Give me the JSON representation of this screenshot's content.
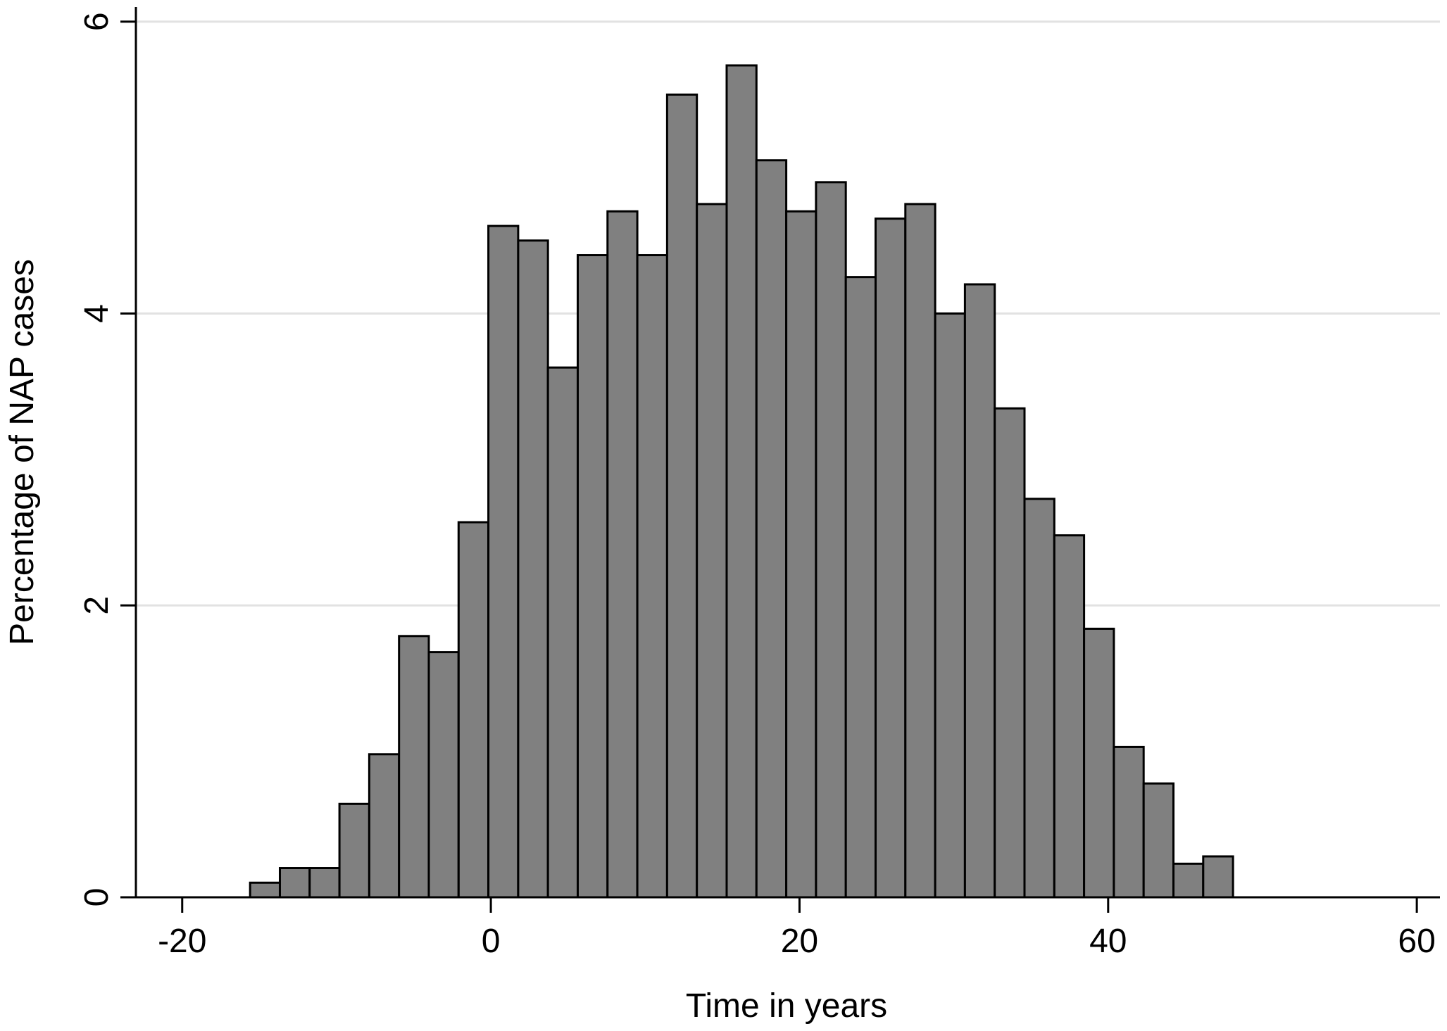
{
  "chart_data": {
    "type": "bar",
    "xlabel": "Time in years",
    "ylabel": "Percentage of NAP cases",
    "xlim": [
      -23,
      61.5
    ],
    "ylim": [
      0,
      6.1
    ],
    "xticks": [
      -20,
      0,
      20,
      40,
      60
    ],
    "yticks": [
      0,
      2,
      4,
      6
    ],
    "grid": true,
    "bin_width": 1.93,
    "bin_start": -15.6,
    "values": [
      0.1,
      0.2,
      0.2,
      0.64,
      0.98,
      1.79,
      1.68,
      2.57,
      4.6,
      4.5,
      3.63,
      4.4,
      4.7,
      4.4,
      5.5,
      4.75,
      5.7,
      5.05,
      4.7,
      4.9,
      4.25,
      4.65,
      4.75,
      4.0,
      4.2,
      3.35,
      2.73,
      2.48,
      1.84,
      1.03,
      0.78,
      0.23,
      0.28
    ],
    "colors": {
      "bar_fill": "#808080",
      "bar_stroke": "#000000",
      "grid": "#e2e2e2"
    }
  }
}
